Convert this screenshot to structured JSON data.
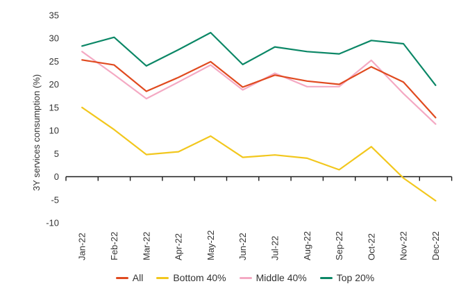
{
  "chart_data": {
    "type": "line",
    "title": "",
    "xlabel": "",
    "ylabel": "3Y services consumption (%)",
    "categories": [
      "Jan-22",
      "Feb-22",
      "Mar-22",
      "Apr-22",
      "May-22",
      "Jun-22",
      "Jul-22",
      "Aug-22",
      "Sep-22",
      "Oct-22",
      "Nov-22",
      "Dec-22"
    ],
    "y_ticks": [
      35,
      30,
      25,
      20,
      15,
      10,
      5,
      0,
      -5,
      -10
    ],
    "ylim": [
      -10,
      35
    ],
    "grid": false,
    "legend_position": "bottom",
    "series": [
      {
        "name": "All",
        "color": "#e04a1f",
        "values": [
          25.3,
          24.2,
          18.5,
          21.5,
          24.9,
          19.4,
          22.0,
          20.7,
          20.0,
          23.8,
          20.5,
          12.8
        ]
      },
      {
        "name": "Bottom 40%",
        "color": "#f2c71d",
        "values": [
          15.0,
          10.2,
          4.8,
          5.4,
          8.8,
          4.2,
          4.7,
          4.0,
          1.5,
          6.5,
          -0.3,
          -5.2
        ]
      },
      {
        "name": "Middle 40%",
        "color": "#f4a9c3",
        "values": [
          27.1,
          22.1,
          16.9,
          20.5,
          24.2,
          18.8,
          22.4,
          19.5,
          19.5,
          25.2,
          18.0,
          11.4
        ]
      },
      {
        "name": "Top 20%",
        "color": "#0b8766",
        "values": [
          28.3,
          30.2,
          24.0,
          27.5,
          31.2,
          24.3,
          28.1,
          27.1,
          26.6,
          29.5,
          28.8,
          19.8
        ]
      }
    ]
  }
}
